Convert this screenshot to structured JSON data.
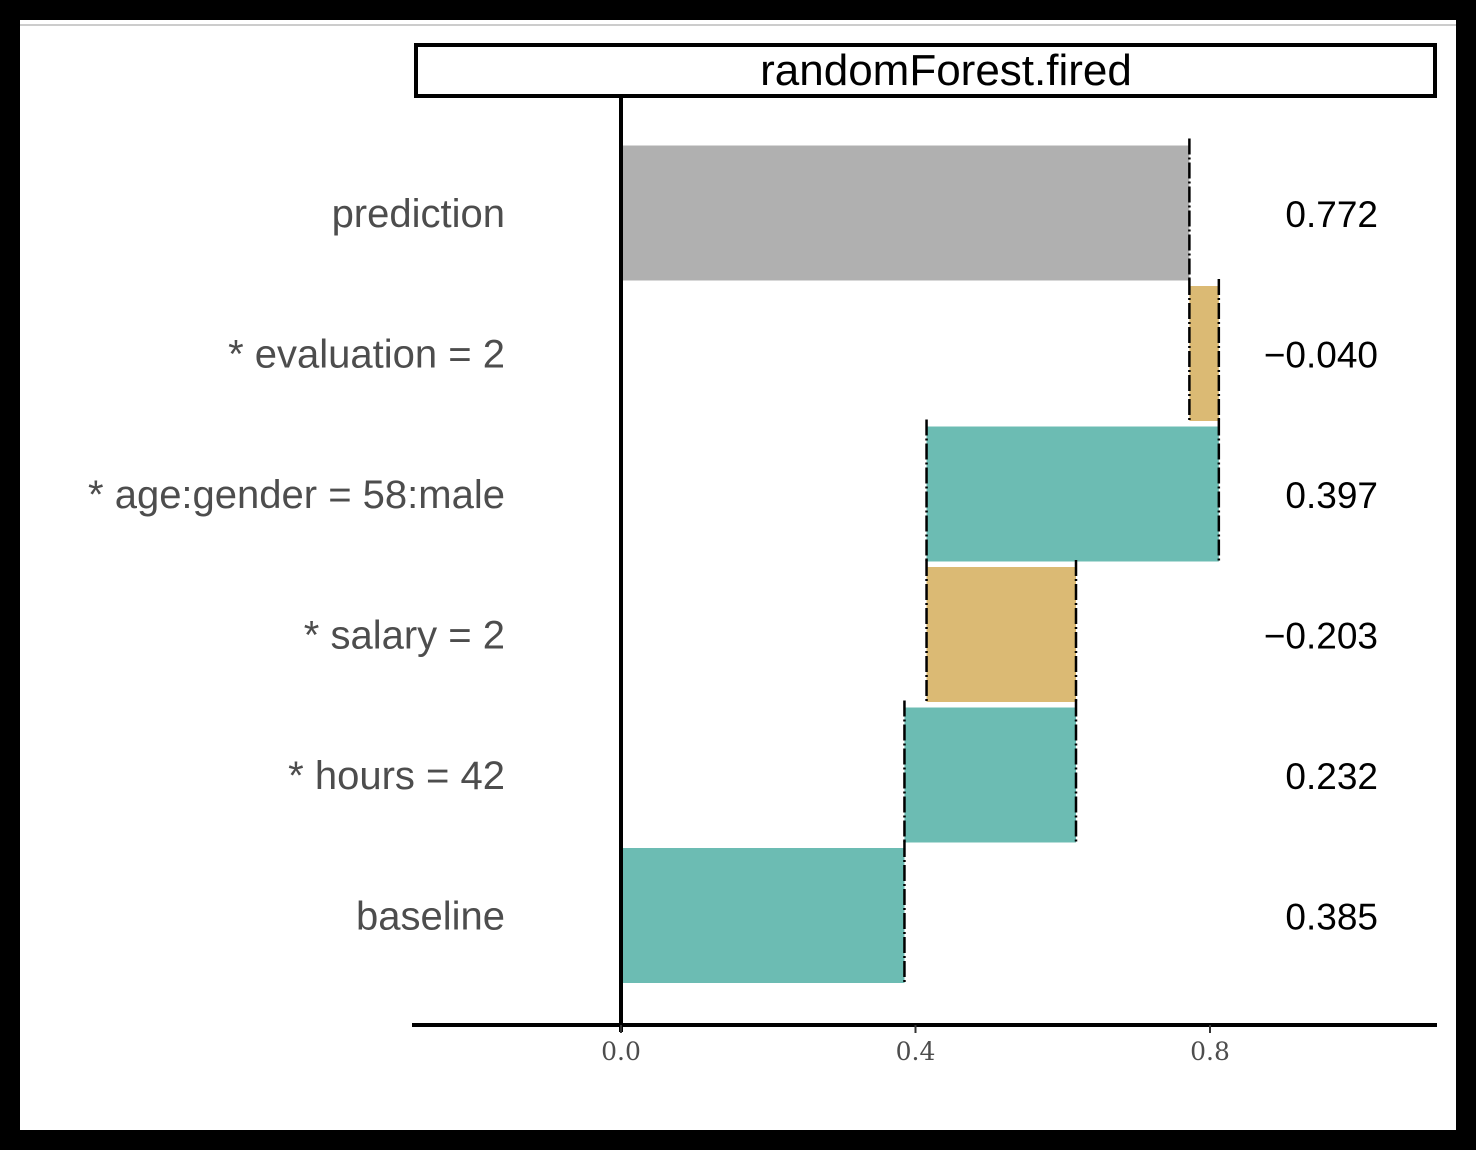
{
  "chart_data": {
    "type": "bar",
    "subtype": "waterfall-breakdown",
    "title": "randomForest.fired",
    "xlabel": "",
    "ylabel": "",
    "xlim": [
      -0.28,
      1.11
    ],
    "xticks": [
      0.0,
      0.4,
      0.8
    ],
    "xtick_labels": [
      "0.0",
      "0.4",
      "0.8"
    ],
    "grid": false,
    "legend": "none",
    "colors": {
      "positive": "#6cbcb3",
      "negative": "#dbba74",
      "prediction": "#b0b0b0",
      "frame": "#000000",
      "label_text": "#4d4d4d",
      "value_text": "#000000"
    },
    "bars": [
      {
        "label": "prediction",
        "value_label": "0.772",
        "start": 0.0,
        "end": 0.772,
        "kind": "prediction"
      },
      {
        "label": "* evaluation = 2",
        "value_label": "−0.040",
        "start": 0.772,
        "end": 0.812,
        "kind": "negative"
      },
      {
        "label": "* age:gender = 58:male",
        "value_label": "0.397",
        "start": 0.415,
        "end": 0.812,
        "kind": "positive"
      },
      {
        "label": "* salary = 2",
        "value_label": "−0.203",
        "start": 0.415,
        "end": 0.618,
        "kind": "negative"
      },
      {
        "label": "* hours = 42",
        "value_label": "0.232",
        "start": 0.385,
        "end": 0.618,
        "kind": "positive"
      },
      {
        "label": "baseline",
        "value_label": "0.385",
        "start": 0.0,
        "end": 0.385,
        "kind": "positive"
      }
    ]
  }
}
